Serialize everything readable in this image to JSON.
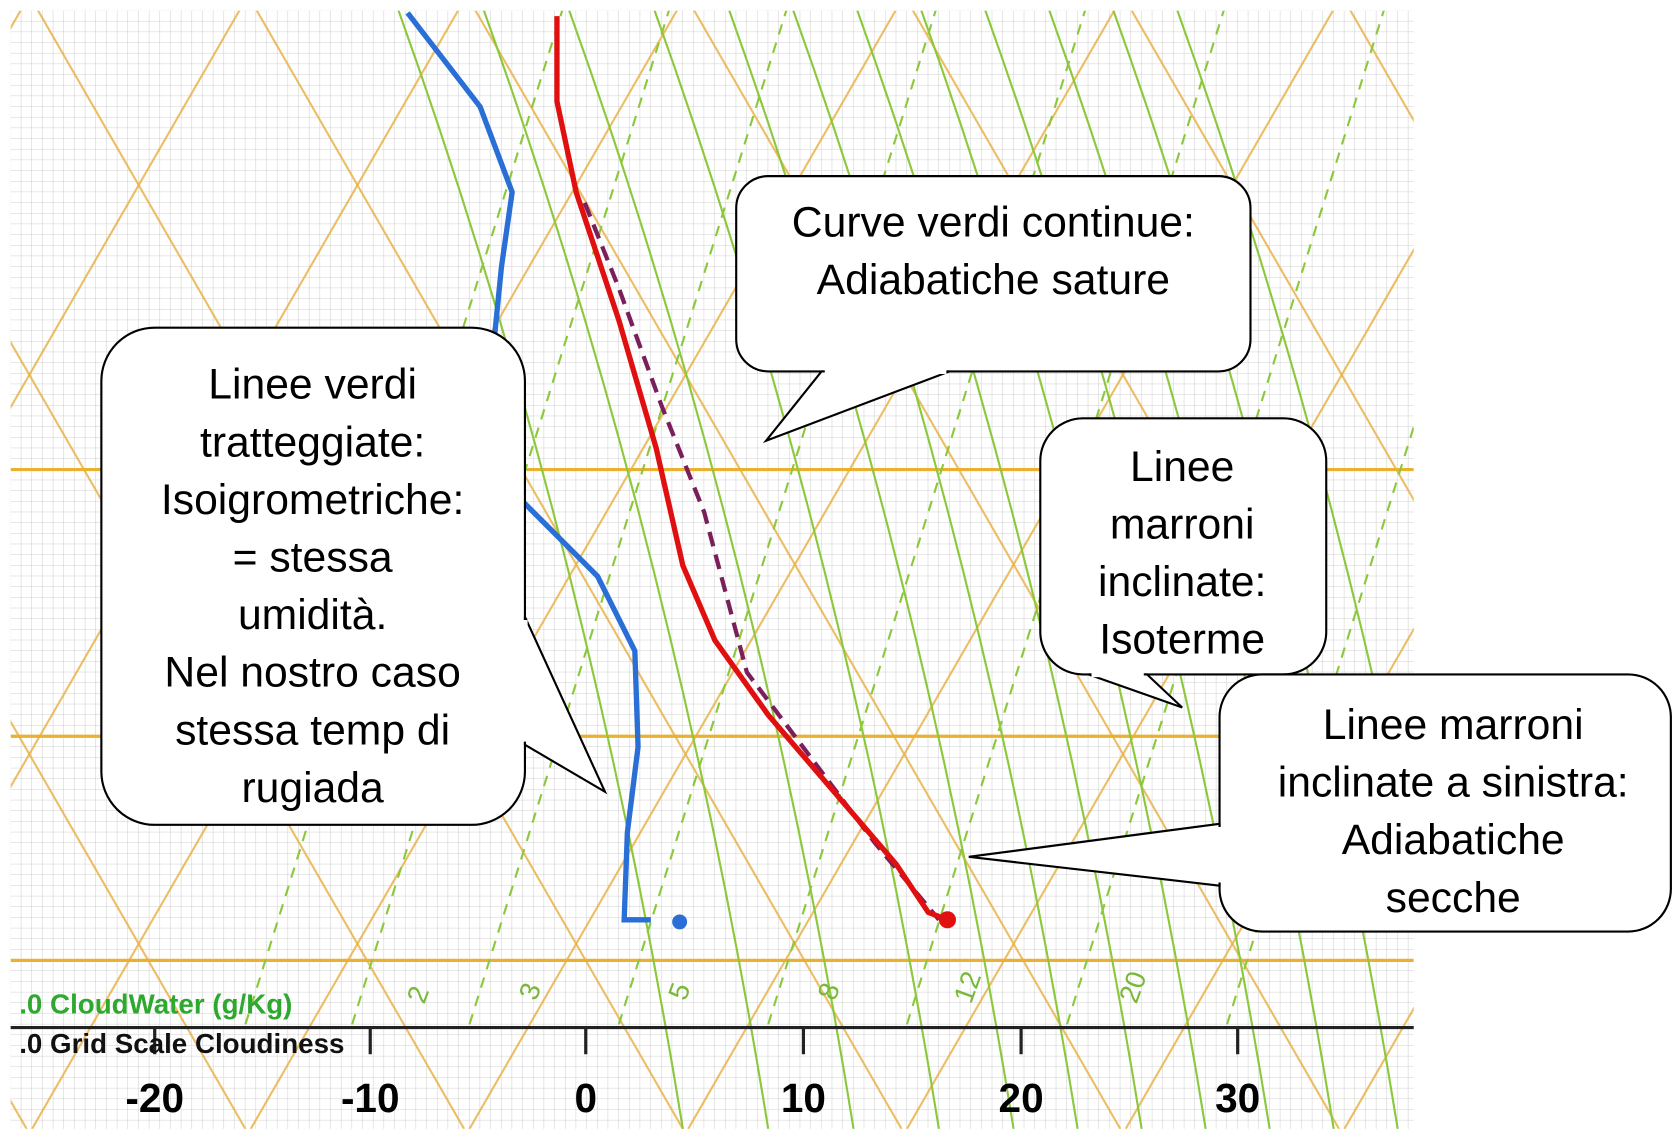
{
  "callouts": [
    {
      "lines": [
        "Linee verdi",
        "tratteggiate:",
        "Isoigrometriche:",
        "= stessa",
        "umidità.",
        "Nel nostro caso",
        "stessa temp di",
        "rugiada"
      ]
    },
    {
      "lines": [
        "Curve verdi continue:",
        "Adiabatiche sature"
      ]
    },
    {
      "lines": [
        "Linee",
        "marroni",
        "inclinate:",
        "Isoterme"
      ]
    },
    {
      "lines": [
        "Linee marroni",
        "inclinate a sinistra:",
        "Adiabatiche",
        "secche"
      ]
    }
  ],
  "axis": {
    "ticks": [
      "-20",
      "-10",
      "0",
      "10",
      "20",
      "30"
    ]
  },
  "mixing_ratio_labels": [
    "2",
    "3",
    "5",
    "8",
    "12",
    "20"
  ],
  "legend": {
    "cloud_water": ".0  CloudWater (g/Kg)",
    "cloudiness": ".0  Grid Scale Cloudiness"
  }
}
